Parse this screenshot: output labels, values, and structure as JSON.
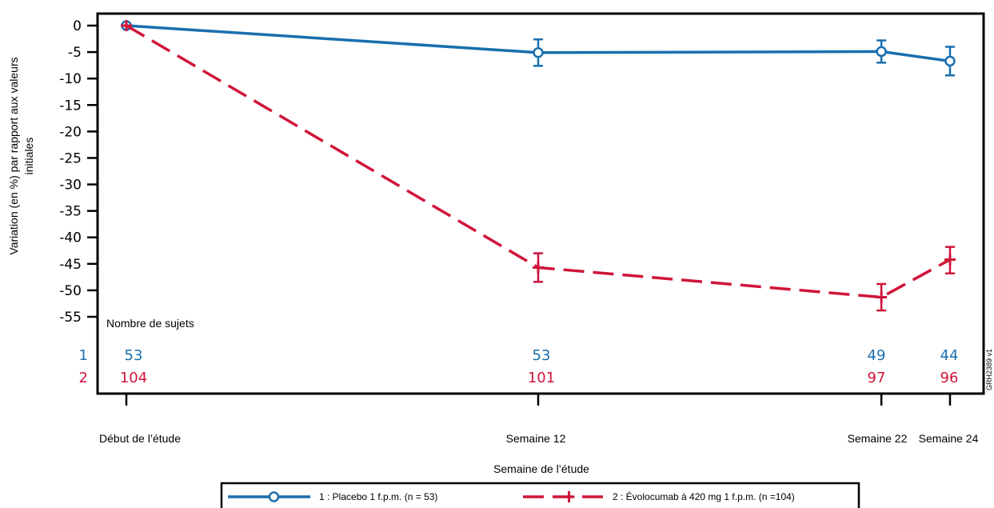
{
  "chart_data": {
    "type": "line",
    "ylabel_lines": [
      "Variation (en %) par rapport aux valeurs",
      "initiales"
    ],
    "xlabel": "Semaine de l’étude",
    "ylim": [
      -57,
      2
    ],
    "yticks": [
      0,
      -5,
      -10,
      -15,
      -20,
      -25,
      -30,
      -35,
      -40,
      -45,
      -50,
      -55
    ],
    "ytick_labels": [
      "0",
      "-5",
      "-10",
      "-15",
      "-20",
      "-25",
      "-30",
      "-35",
      "-40",
      "-45",
      "-50",
      "-55"
    ],
    "categories": [
      "Début de l’étude",
      "Semaine 12",
      "Semaine 22",
      "Semaine 24"
    ],
    "x": [
      0,
      12,
      22,
      24
    ],
    "grid": false,
    "legend_position": "bottom",
    "series": [
      {
        "name": "1 : Placebo 1 f.p.m. (n = 53)",
        "id": "1",
        "color": "#1a6fad",
        "dash": "solid",
        "marker": "circle",
        "values": [
          0,
          -5.1,
          -4.9,
          -6.7
        ],
        "err_low": [
          0,
          -7.6,
          -7.0,
          -9.4
        ],
        "err_high": [
          0,
          -2.6,
          -2.8,
          -4.0
        ],
        "counts": [
          "53",
          "53",
          "49",
          "44"
        ]
      },
      {
        "name": "2 : Évolocumab à 420 mg 1 f.p.m. (n =104)",
        "id": "2",
        "color": "#d0153a",
        "dash": "dashed",
        "marker": "plus",
        "values": [
          0,
          -45.7,
          -51.3,
          -44.2
        ],
        "err_low": [
          0,
          -48.4,
          -53.8,
          -46.8
        ],
        "err_high": [
          0,
          -43.0,
          -48.8,
          -41.8
        ],
        "counts": [
          "104",
          "101",
          "97",
          "96"
        ]
      }
    ],
    "counts_title": "Nombre de sujets",
    "watermark": "GRH2389 v1"
  }
}
